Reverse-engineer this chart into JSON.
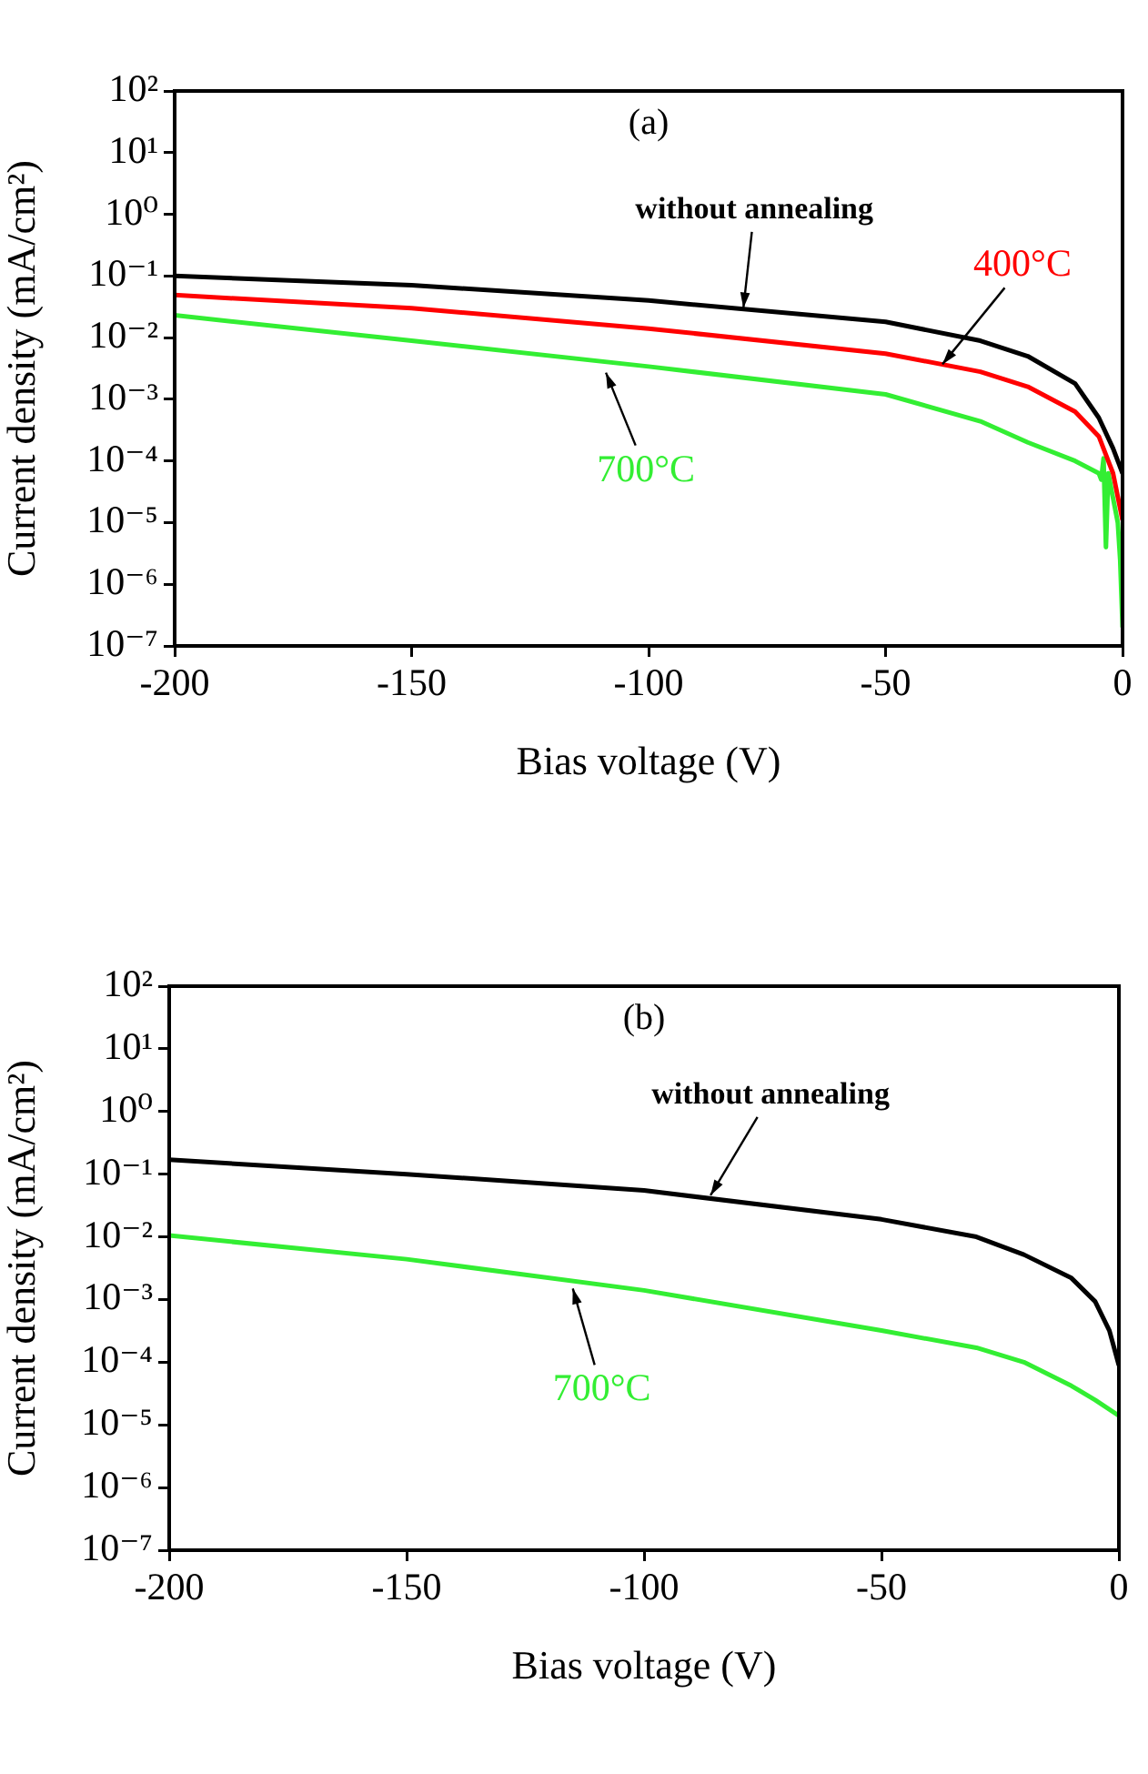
{
  "chart_data": [
    {
      "type": "line",
      "title": "(a)",
      "xlabel": "Bias voltage (V)",
      "ylabel": "Current density (mA/cm²)",
      "log": "y",
      "xlim": [
        -200,
        0
      ],
      "xticks": [
        -200,
        -150,
        -100,
        -50,
        0
      ],
      "ylim": [
        1e-07,
        100
      ],
      "yticks": [
        {
          "value": 1e-07,
          "label": "10⁻⁷"
        },
        {
          "value": 1e-06,
          "label": "10⁻⁶"
        },
        {
          "value": 1e-05,
          "label": "10⁻⁵"
        },
        {
          "value": 0.0001,
          "label": "10⁻⁴"
        },
        {
          "value": 0.001,
          "label": "10⁻³"
        },
        {
          "value": 0.01,
          "label": "10⁻²"
        },
        {
          "value": 0.1,
          "label": "10⁻¹"
        },
        {
          "value": 1,
          "label": "10⁰"
        },
        {
          "value": 10,
          "label": "10¹"
        },
        {
          "value": 100,
          "label": "10²"
        }
      ],
      "grid": false,
      "legend": false,
      "marker": "none",
      "series": [
        {
          "color": "#000000",
          "x": [
            -200,
            -150,
            -100,
            -50,
            -30,
            -20,
            -10,
            -5,
            -2,
            0
          ],
          "values": [
            0.1,
            0.071,
            0.04,
            0.018,
            0.0089,
            0.005,
            0.0018,
            0.0005,
            0.00016,
            6.3e-05
          ]
        },
        {
          "color": "#ff0000",
          "x": [
            -200,
            -150,
            -100,
            -50,
            -30,
            -20,
            -10,
            -5,
            -2,
            0
          ],
          "values": [
            0.049,
            0.03,
            0.014,
            0.0055,
            0.0028,
            0.0016,
            0.00063,
            0.00025,
            6.3e-05,
            1.1e-05
          ]
        },
        {
          "color": "#33ee33",
          "x": [
            -200,
            -150,
            -100,
            -50,
            -30,
            -20,
            -10,
            -5,
            -4.5,
            -4,
            -3.5,
            -3,
            -2,
            -1,
            -0.5,
            0
          ],
          "values": [
            0.023,
            0.0089,
            0.0034,
            0.0012,
            0.00044,
            0.0002,
            0.0001,
            6.3e-05,
            5e-05,
            0.00011,
            4e-06,
            6.3e-05,
            2.5e-05,
            1e-05,
            2.5e-06,
            2e-07
          ]
        }
      ],
      "annotations": [
        {
          "text": "without annealing",
          "x": -80,
          "y": 0.03
        },
        {
          "text": "400°C",
          "x": -38,
          "y": 0.0037
        },
        {
          "text": "700°C",
          "x": -109,
          "y": 0.0027
        }
      ]
    },
    {
      "type": "line",
      "title": "(b)",
      "xlabel": "Bias voltage (V)",
      "ylabel": "Current density (mA/cm²)",
      "log": "y",
      "xlim": [
        -200,
        0
      ],
      "xticks": [
        -200,
        -150,
        -100,
        -50,
        0
      ],
      "ylim": [
        1e-07,
        100
      ],
      "yticks": [
        {
          "value": 1e-07,
          "label": "10⁻⁷"
        },
        {
          "value": 1e-06,
          "label": "10⁻⁶"
        },
        {
          "value": 1e-05,
          "label": "10⁻⁵"
        },
        {
          "value": 0.0001,
          "label": "10⁻⁴"
        },
        {
          "value": 0.001,
          "label": "10⁻³"
        },
        {
          "value": 0.01,
          "label": "10⁻²"
        },
        {
          "value": 0.1,
          "label": "10⁻¹"
        },
        {
          "value": 1,
          "label": "10⁰"
        },
        {
          "value": 10,
          "label": "10¹"
        },
        {
          "value": 100,
          "label": "10²"
        }
      ],
      "grid": false,
      "legend": false,
      "marker": "none",
      "series": [
        {
          "color": "#000000",
          "x": [
            -200,
            -150,
            -100,
            -50,
            -30,
            -20,
            -10,
            -5,
            -2,
            0
          ],
          "values": [
            0.17,
            0.1,
            0.055,
            0.019,
            0.01,
            0.0052,
            0.0022,
            0.00093,
            0.00032,
            8.9e-05
          ]
        },
        {
          "color": "#33ee33",
          "x": [
            -200,
            -150,
            -100,
            -50,
            -30,
            -20,
            -10,
            -5,
            0
          ],
          "values": [
            0.0105,
            0.0044,
            0.0014,
            0.00032,
            0.00017,
            0.0001,
            4.2e-05,
            2.5e-05,
            1.4e-05
          ]
        }
      ],
      "annotations": [
        {
          "text": "without annealing",
          "x": -86,
          "y": 0.046
        },
        {
          "text": "700°C",
          "x": -115,
          "y": 0.0015
        }
      ]
    }
  ]
}
